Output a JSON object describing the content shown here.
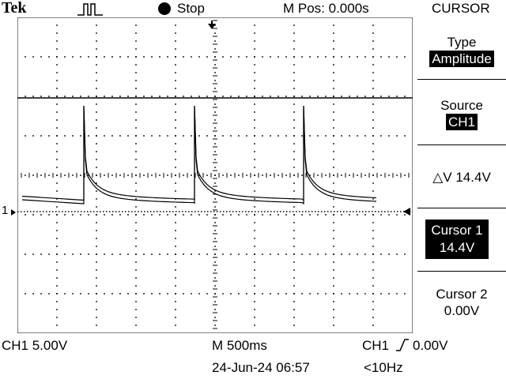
{
  "header": {
    "brand": "Tek",
    "run_state": "Stop",
    "m_pos": "M Pos: 0.000s",
    "menu_title": "CURSOR"
  },
  "side_menu": {
    "type_label": "Type",
    "type_value": "Amplitude",
    "source_label": "Source",
    "source_value": "CH1",
    "delta": "△V 14.4V",
    "cursor1_label": "Cursor 1",
    "cursor1_value": "14.4V",
    "cursor2_label": "Cursor 2",
    "cursor2_value": "0.00V"
  },
  "footer": {
    "ch1_scale": "CH1  5.00V",
    "timebase": "M 500ms",
    "trigger_source": "CH1",
    "trigger_level": "0.00V",
    "datetime": "24-Jun-24 06:57",
    "frequency": "<10Hz"
  },
  "display": {
    "ch1_marker": "1",
    "grid_divisions_x": 10,
    "grid_divisions_y": 8,
    "volts_per_div": 5.0,
    "cursor1_volts": 14.4,
    "cursor2_volts": 0.0,
    "colors": {
      "background": "#ffffff",
      "trace": "#000000"
    }
  }
}
